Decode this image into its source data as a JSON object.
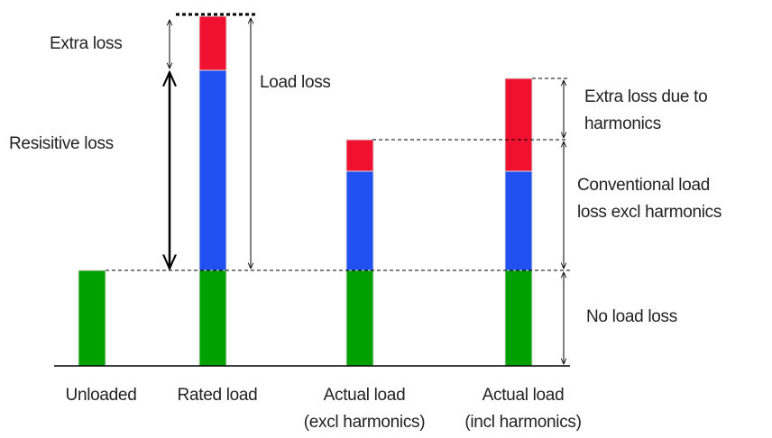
{
  "chart_data": {
    "type": "bar",
    "categories": [
      "Unloaded",
      "Rated load",
      "Actual load\n(excl harmonics)",
      "Actual load\n(incl harmonics)"
    ],
    "series": [
      {
        "color": "#00a000",
        "values": [
          106,
          106,
          106,
          106
        ]
      },
      {
        "color": "#2050f0",
        "values": [
          null,
          222,
          110,
          110
        ]
      },
      {
        "color": "#f01030",
        "values": [
          null,
          60,
          35,
          103
        ]
      }
    ],
    "ylim": [
      0,
      390
    ],
    "annotations": [
      "Extra loss",
      "Resisitive loss",
      "Load loss",
      "Extra loss due to\nharmonics",
      "Conventional load\nloss excl harmonics",
      "No load loss"
    ]
  }
}
